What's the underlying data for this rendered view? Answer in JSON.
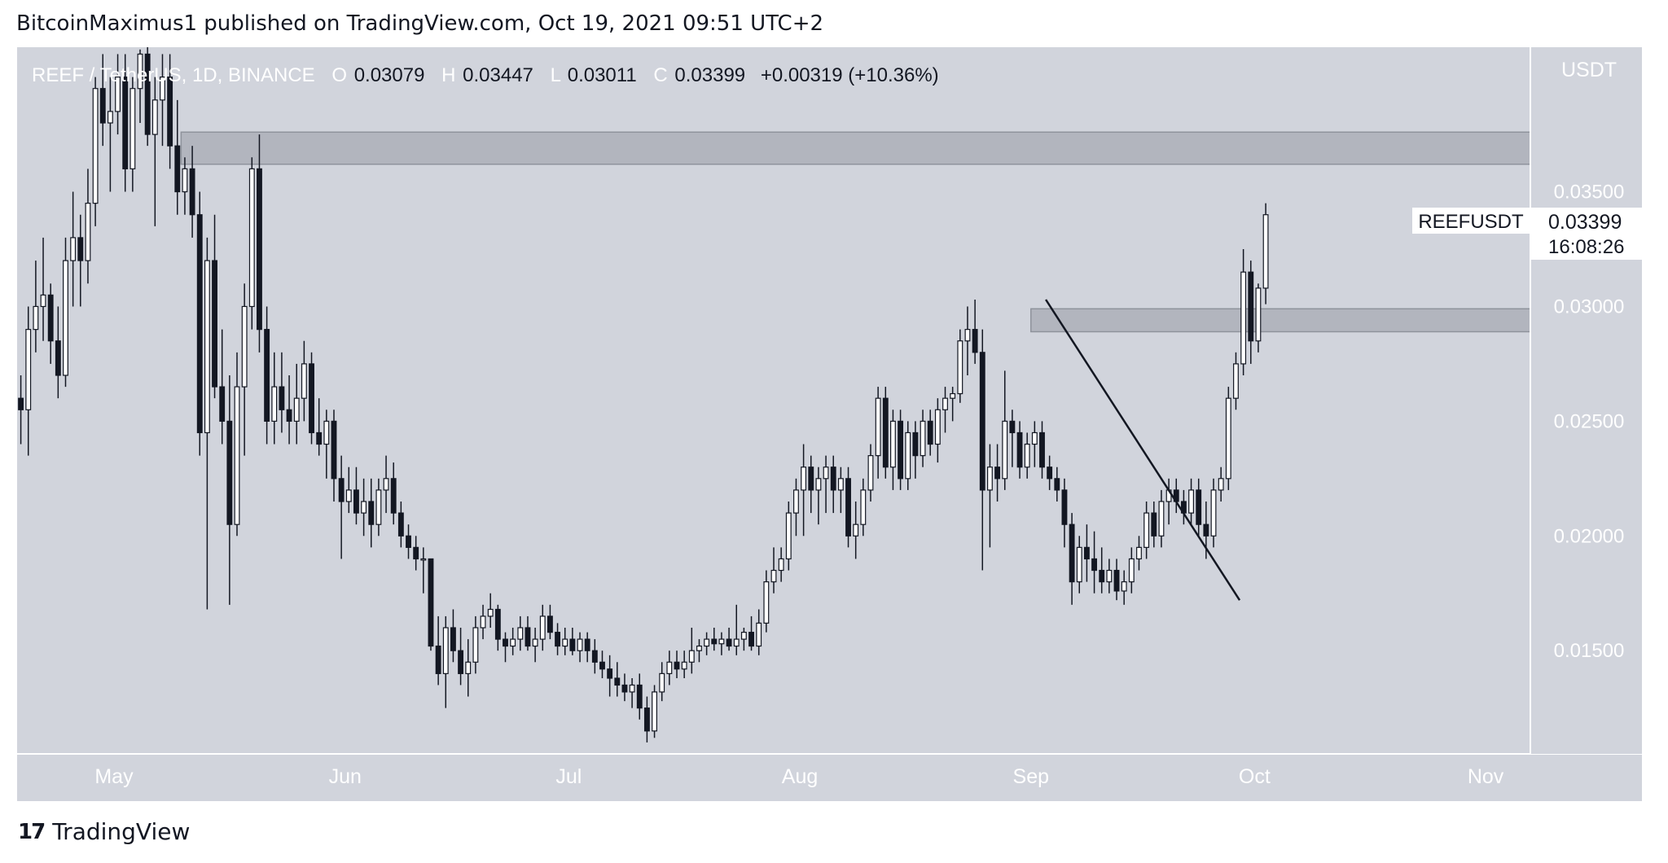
{
  "header": {
    "published_by": "BitcoinMaximus1 published on TradingView.com, Oct 19, 2021 09:51 UTC+2"
  },
  "footer": {
    "brand": "TradingView",
    "logo_glyph": "17"
  },
  "colors": {
    "background": "#d1d4dc",
    "candle_up_body": "#ffffff",
    "candle_down_body": "#131722",
    "wick": "#131722",
    "zone_fill": "#b2b5be",
    "axis_bg": "#d1d4dc",
    "text": "#ffffff",
    "label_bg": "#ffffff"
  },
  "chart_data": {
    "type": "candlestick",
    "symbol_info": {
      "pair": "REEF / TetherUS, 1D, BINANCE",
      "o_label": "O",
      "open": "0.03079",
      "h_label": "H",
      "high": "0.03447",
      "l_label": "L",
      "low": "0.03011",
      "c_label": "C",
      "close": "0.03399",
      "change": "+0.00319 (+10.36%)"
    },
    "y_axis": {
      "unit": "USDT",
      "ticks": [
        "0.03500",
        "0.03000",
        "0.02500",
        "0.02000",
        "0.01500"
      ],
      "min": 0.0105,
      "max": 0.0413
    },
    "x_axis": {
      "labels": [
        "May",
        "Jun",
        "Jul",
        "Aug",
        "Sep",
        "Oct",
        "Nov"
      ],
      "start_date": "2021-04-18",
      "end_date": "2021-11-07"
    },
    "last_price": {
      "symbol": "REEFUSDT",
      "value": "0.03399",
      "countdown": "16:08:26"
    },
    "zones": [
      {
        "start": "2021-05-10",
        "end": "2021-11-07",
        "low": 0.0362,
        "high": 0.0376
      },
      {
        "start": "2021-09-01",
        "end": "2021-11-07",
        "low": 0.0289,
        "high": 0.0299
      }
    ],
    "trendline": {
      "start": [
        "2021-09-03",
        0.0303
      ],
      "end": [
        "2021-09-29",
        0.0172
      ]
    },
    "candles": [
      [
        0.026,
        0.027,
        0.024,
        0.0255
      ],
      [
        0.0255,
        0.03,
        0.0235,
        0.029
      ],
      [
        0.029,
        0.032,
        0.028,
        0.03
      ],
      [
        0.03,
        0.033,
        0.0285,
        0.0305
      ],
      [
        0.0305,
        0.031,
        0.0275,
        0.0285
      ],
      [
        0.0285,
        0.03,
        0.026,
        0.027
      ],
      [
        0.027,
        0.033,
        0.0265,
        0.032
      ],
      [
        0.032,
        0.035,
        0.03,
        0.033
      ],
      [
        0.033,
        0.034,
        0.03,
        0.032
      ],
      [
        0.032,
        0.036,
        0.031,
        0.0345
      ],
      [
        0.0345,
        0.04,
        0.0335,
        0.0395
      ],
      [
        0.0395,
        0.041,
        0.037,
        0.038
      ],
      [
        0.038,
        0.04,
        0.035,
        0.0385
      ],
      [
        0.0385,
        0.041,
        0.0375,
        0.04
      ],
      [
        0.04,
        0.041,
        0.035,
        0.036
      ],
      [
        0.036,
        0.04,
        0.035,
        0.0395
      ],
      [
        0.0395,
        0.0412,
        0.038,
        0.041
      ],
      [
        0.041,
        0.042,
        0.037,
        0.0375
      ],
      [
        0.0375,
        0.04,
        0.0335,
        0.039
      ],
      [
        0.039,
        0.041,
        0.037,
        0.04
      ],
      [
        0.04,
        0.041,
        0.036,
        0.037
      ],
      [
        0.037,
        0.039,
        0.034,
        0.035
      ],
      [
        0.035,
        0.0365,
        0.034,
        0.036
      ],
      [
        0.036,
        0.037,
        0.033,
        0.034
      ],
      [
        0.034,
        0.035,
        0.0235,
        0.0245
      ],
      [
        0.0245,
        0.033,
        0.0168,
        0.032
      ],
      [
        0.032,
        0.034,
        0.026,
        0.0265
      ],
      [
        0.0265,
        0.029,
        0.024,
        0.025
      ],
      [
        0.025,
        0.027,
        0.017,
        0.0205
      ],
      [
        0.0205,
        0.028,
        0.02,
        0.0265
      ],
      [
        0.0265,
        0.031,
        0.0235,
        0.03
      ],
      [
        0.03,
        0.0365,
        0.029,
        0.036
      ],
      [
        0.036,
        0.0375,
        0.028,
        0.029
      ],
      [
        0.029,
        0.03,
        0.024,
        0.025
      ],
      [
        0.025,
        0.028,
        0.024,
        0.0265
      ],
      [
        0.0265,
        0.028,
        0.0245,
        0.0255
      ],
      [
        0.0255,
        0.027,
        0.024,
        0.025
      ],
      [
        0.025,
        0.0275,
        0.024,
        0.026
      ],
      [
        0.026,
        0.0285,
        0.025,
        0.0275
      ],
      [
        0.0275,
        0.028,
        0.024,
        0.0245
      ],
      [
        0.0245,
        0.026,
        0.0235,
        0.024
      ],
      [
        0.024,
        0.0255,
        0.0225,
        0.025
      ],
      [
        0.025,
        0.0255,
        0.0215,
        0.0225
      ],
      [
        0.0225,
        0.0235,
        0.019,
        0.0215
      ],
      [
        0.0215,
        0.023,
        0.021,
        0.022
      ],
      [
        0.022,
        0.023,
        0.0205,
        0.021
      ],
      [
        0.021,
        0.0225,
        0.02,
        0.0215
      ],
      [
        0.0215,
        0.0225,
        0.0195,
        0.0205
      ],
      [
        0.0205,
        0.0225,
        0.02,
        0.022
      ],
      [
        0.022,
        0.0235,
        0.021,
        0.0225
      ],
      [
        0.0225,
        0.0232,
        0.0205,
        0.021
      ],
      [
        0.021,
        0.0215,
        0.0195,
        0.02
      ],
      [
        0.02,
        0.0205,
        0.019,
        0.0195
      ],
      [
        0.0195,
        0.02,
        0.0185,
        0.019
      ],
      [
        0.019,
        0.0195,
        0.0175,
        0.019
      ],
      [
        0.019,
        0.019,
        0.015,
        0.0152
      ],
      [
        0.0152,
        0.0165,
        0.0135,
        0.014
      ],
      [
        0.014,
        0.0165,
        0.0125,
        0.016
      ],
      [
        0.016,
        0.0168,
        0.0145,
        0.015
      ],
      [
        0.015,
        0.016,
        0.0135,
        0.014
      ],
      [
        0.014,
        0.0155,
        0.013,
        0.0145
      ],
      [
        0.0145,
        0.0165,
        0.014,
        0.016
      ],
      [
        0.016,
        0.017,
        0.0155,
        0.0165
      ],
      [
        0.0165,
        0.0175,
        0.016,
        0.0168
      ],
      [
        0.0168,
        0.017,
        0.015,
        0.0155
      ],
      [
        0.0155,
        0.0158,
        0.0145,
        0.0152
      ],
      [
        0.0152,
        0.016,
        0.0148,
        0.0155
      ],
      [
        0.0155,
        0.0165,
        0.015,
        0.016
      ],
      [
        0.016,
        0.0165,
        0.015,
        0.0152
      ],
      [
        0.0152,
        0.016,
        0.0145,
        0.0155
      ],
      [
        0.0155,
        0.017,
        0.015,
        0.0165
      ],
      [
        0.0165,
        0.017,
        0.0155,
        0.0158
      ],
      [
        0.0158,
        0.0162,
        0.0148,
        0.0152
      ],
      [
        0.0152,
        0.016,
        0.0148,
        0.0155
      ],
      [
        0.0155,
        0.016,
        0.0148,
        0.015
      ],
      [
        0.015,
        0.0158,
        0.0145,
        0.0155
      ],
      [
        0.0155,
        0.0158,
        0.0145,
        0.015
      ],
      [
        0.015,
        0.0155,
        0.014,
        0.0145
      ],
      [
        0.0145,
        0.015,
        0.0138,
        0.0142
      ],
      [
        0.0142,
        0.0148,
        0.013,
        0.0138
      ],
      [
        0.0138,
        0.0145,
        0.013,
        0.0135
      ],
      [
        0.0135,
        0.014,
        0.0128,
        0.0132
      ],
      [
        0.0132,
        0.0138,
        0.0125,
        0.0135
      ],
      [
        0.0135,
        0.014,
        0.012,
        0.0125
      ],
      [
        0.0125,
        0.013,
        0.011,
        0.0115
      ],
      [
        0.0115,
        0.0135,
        0.0112,
        0.0132
      ],
      [
        0.0132,
        0.0145,
        0.0128,
        0.014
      ],
      [
        0.014,
        0.015,
        0.0135,
        0.0145
      ],
      [
        0.0145,
        0.015,
        0.0138,
        0.0142
      ],
      [
        0.0142,
        0.015,
        0.0138,
        0.0145
      ],
      [
        0.0145,
        0.016,
        0.014,
        0.015
      ],
      [
        0.015,
        0.0155,
        0.0145,
        0.0152
      ],
      [
        0.0152,
        0.0158,
        0.0148,
        0.0155
      ],
      [
        0.0155,
        0.016,
        0.015,
        0.0153
      ],
      [
        0.0153,
        0.0158,
        0.0148,
        0.0155
      ],
      [
        0.0155,
        0.016,
        0.015,
        0.0152
      ],
      [
        0.0152,
        0.017,
        0.0148,
        0.0155
      ],
      [
        0.0155,
        0.016,
        0.015,
        0.0158
      ],
      [
        0.0158,
        0.0165,
        0.015,
        0.0152
      ],
      [
        0.0152,
        0.0168,
        0.0148,
        0.0162
      ],
      [
        0.0162,
        0.0185,
        0.0158,
        0.018
      ],
      [
        0.018,
        0.0195,
        0.0175,
        0.0185
      ],
      [
        0.0185,
        0.0195,
        0.018,
        0.019
      ],
      [
        0.019,
        0.0215,
        0.0185,
        0.021
      ],
      [
        0.021,
        0.0225,
        0.02,
        0.022
      ],
      [
        0.022,
        0.024,
        0.02,
        0.023
      ],
      [
        0.023,
        0.0235,
        0.021,
        0.022
      ],
      [
        0.022,
        0.023,
        0.0205,
        0.0225
      ],
      [
        0.0225,
        0.0235,
        0.021,
        0.023
      ],
      [
        0.023,
        0.0235,
        0.021,
        0.022
      ],
      [
        0.022,
        0.023,
        0.021,
        0.0225
      ],
      [
        0.0225,
        0.023,
        0.0195,
        0.02
      ],
      [
        0.02,
        0.0215,
        0.019,
        0.0205
      ],
      [
        0.0205,
        0.0225,
        0.02,
        0.022
      ],
      [
        0.022,
        0.024,
        0.0215,
        0.0235
      ],
      [
        0.0235,
        0.0265,
        0.0225,
        0.026
      ],
      [
        0.026,
        0.0265,
        0.0225,
        0.023
      ],
      [
        0.023,
        0.0255,
        0.022,
        0.025
      ],
      [
        0.025,
        0.0255,
        0.022,
        0.0225
      ],
      [
        0.0225,
        0.025,
        0.022,
        0.0245
      ],
      [
        0.0245,
        0.025,
        0.0225,
        0.0235
      ],
      [
        0.0235,
        0.0255,
        0.023,
        0.025
      ],
      [
        0.025,
        0.0255,
        0.0235,
        0.024
      ],
      [
        0.024,
        0.026,
        0.0232,
        0.0255
      ],
      [
        0.0255,
        0.0265,
        0.0245,
        0.026
      ],
      [
        0.026,
        0.0265,
        0.025,
        0.0262
      ],
      [
        0.0262,
        0.029,
        0.0258,
        0.0285
      ],
      [
        0.0285,
        0.03,
        0.027,
        0.029
      ],
      [
        0.029,
        0.0303,
        0.0275,
        0.028
      ],
      [
        0.028,
        0.029,
        0.0185,
        0.022
      ],
      [
        0.022,
        0.024,
        0.0195,
        0.023
      ],
      [
        0.023,
        0.024,
        0.0215,
        0.0225
      ],
      [
        0.0225,
        0.0272,
        0.022,
        0.025
      ],
      [
        0.025,
        0.0255,
        0.023,
        0.0245
      ],
      [
        0.0245,
        0.025,
        0.0225,
        0.023
      ],
      [
        0.023,
        0.0245,
        0.0225,
        0.024
      ],
      [
        0.024,
        0.025,
        0.023,
        0.0245
      ],
      [
        0.0245,
        0.025,
        0.0225,
        0.023
      ],
      [
        0.023,
        0.0235,
        0.022,
        0.0225
      ],
      [
        0.0225,
        0.023,
        0.0215,
        0.022
      ],
      [
        0.022,
        0.0225,
        0.0195,
        0.0205
      ],
      [
        0.0205,
        0.021,
        0.017,
        0.018
      ],
      [
        0.018,
        0.02,
        0.0175,
        0.0195
      ],
      [
        0.0195,
        0.0205,
        0.018,
        0.019
      ],
      [
        0.019,
        0.0202,
        0.0175,
        0.0185
      ],
      [
        0.0185,
        0.0195,
        0.0175,
        0.018
      ],
      [
        0.018,
        0.019,
        0.0175,
        0.0185
      ],
      [
        0.0185,
        0.019,
        0.0172,
        0.0176
      ],
      [
        0.0176,
        0.0185,
        0.017,
        0.018
      ],
      [
        0.018,
        0.0195,
        0.0175,
        0.019
      ],
      [
        0.019,
        0.02,
        0.0185,
        0.0195
      ],
      [
        0.0195,
        0.0215,
        0.019,
        0.021
      ],
      [
        0.021,
        0.0215,
        0.0195,
        0.02
      ],
      [
        0.02,
        0.022,
        0.0195,
        0.0215
      ],
      [
        0.0215,
        0.0225,
        0.0205,
        0.022
      ],
      [
        0.022,
        0.0225,
        0.021,
        0.0215
      ],
      [
        0.0215,
        0.022,
        0.0205,
        0.021
      ],
      [
        0.021,
        0.0225,
        0.0205,
        0.022
      ],
      [
        0.022,
        0.0225,
        0.02,
        0.0205
      ],
      [
        0.0205,
        0.0215,
        0.019,
        0.02
      ],
      [
        0.02,
        0.0225,
        0.0195,
        0.022
      ],
      [
        0.022,
        0.023,
        0.0215,
        0.0225
      ],
      [
        0.0225,
        0.0265,
        0.022,
        0.026
      ],
      [
        0.026,
        0.028,
        0.0255,
        0.0275
      ],
      [
        0.0275,
        0.0325,
        0.027,
        0.0315
      ],
      [
        0.0315,
        0.032,
        0.0275,
        0.0285
      ],
      [
        0.0285,
        0.031,
        0.028,
        0.0308
      ],
      [
        0.0308,
        0.0345,
        0.0301,
        0.034
      ]
    ]
  }
}
